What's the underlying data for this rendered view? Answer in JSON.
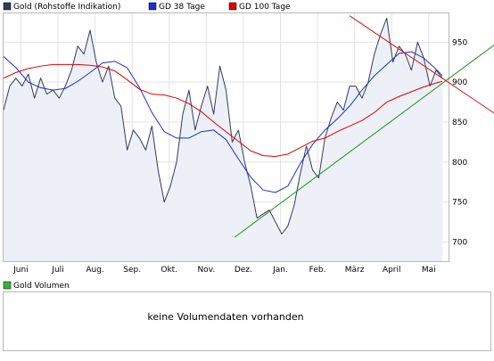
{
  "chart_data": [
    {
      "type": "line",
      "title": "",
      "legend": [
        {
          "name": "Gold (Rohstoffe Indikation)",
          "color": "#333a57"
        },
        {
          "name": "GD 38 Tage",
          "color": "#1c2fd0"
        },
        {
          "name": "GD 100 Tage",
          "color": "#e00000"
        }
      ],
      "legend_placement": "top-left",
      "x_ticks": [
        "Juni",
        "Juli",
        "Aug.",
        "Sep.",
        "Okt.",
        "Nov.",
        "Dez.",
        "Jan.",
        "Feb.",
        "März",
        "April",
        "Mai"
      ],
      "y_ticks": [
        700,
        750,
        800,
        850,
        900,
        950
      ],
      "y_axis_side": "right",
      "ylim": [
        676,
        986
      ],
      "grid": true,
      "series": [
        {
          "name": "Gold (Rohstoffe Indikation)",
          "color": "#333a57",
          "fill": "#eef0f8",
          "x": [
            0,
            5,
            10,
            15,
            20,
            25,
            30,
            35,
            40,
            45,
            50,
            55,
            60,
            65,
            70,
            75,
            80,
            85,
            90,
            95,
            100,
            105,
            110,
            115,
            120,
            125,
            130,
            135,
            140,
            145,
            150,
            155,
            160,
            165,
            170,
            175,
            180,
            185,
            190,
            195,
            200,
            205,
            210,
            215,
            220,
            225,
            230,
            235,
            240,
            245,
            250,
            255,
            260,
            265,
            270,
            275,
            280,
            285,
            290,
            295,
            300,
            305,
            310,
            315,
            320,
            325,
            330,
            335,
            340,
            345,
            350,
            355
          ],
          "y": [
            865,
            895,
            905,
            895,
            910,
            880,
            905,
            885,
            890,
            880,
            895,
            915,
            945,
            935,
            965,
            925,
            900,
            920,
            880,
            870,
            815,
            840,
            830,
            815,
            845,
            790,
            750,
            770,
            800,
            860,
            890,
            840,
            870,
            895,
            860,
            920,
            890,
            825,
            840,
            800,
            770,
            730,
            735,
            740,
            725,
            710,
            720,
            745,
            785,
            820,
            790,
            780,
            830,
            855,
            875,
            865,
            895,
            895,
            880,
            900,
            935,
            960,
            980,
            925,
            945,
            935,
            915,
            950,
            930,
            895,
            915,
            905
          ]
        },
        {
          "name": "GD 38 Tage",
          "color": "#1c2fd0",
          "x": [
            0,
            10,
            20,
            30,
            40,
            50,
            60,
            70,
            80,
            90,
            100,
            110,
            120,
            130,
            140,
            150,
            160,
            170,
            180,
            190,
            200,
            210,
            220,
            230,
            240,
            250,
            260,
            270,
            280,
            290,
            300,
            310,
            320,
            330,
            340,
            350,
            355
          ],
          "y": [
            932,
            918,
            900,
            893,
            890,
            892,
            901,
            912,
            924,
            926,
            918,
            893,
            862,
            838,
            830,
            830,
            838,
            840,
            828,
            804,
            781,
            765,
            762,
            770,
            798,
            822,
            840,
            854,
            870,
            890,
            908,
            922,
            936,
            938,
            930,
            916,
            908
          ]
        },
        {
          "name": "GD 100 Tage",
          "color": "#e00000",
          "x": [
            0,
            10,
            20,
            30,
            40,
            50,
            60,
            70,
            80,
            90,
            100,
            110,
            120,
            130,
            140,
            150,
            160,
            170,
            180,
            190,
            200,
            210,
            220,
            230,
            240,
            250,
            260,
            270,
            280,
            290,
            300,
            310,
            320,
            330,
            340,
            350,
            355
          ],
          "y": [
            905,
            912,
            917,
            920,
            922,
            922,
            922,
            921,
            919,
            914,
            903,
            891,
            885,
            884,
            880,
            873,
            863,
            850,
            838,
            826,
            814,
            808,
            807,
            810,
            818,
            826,
            830,
            838,
            845,
            852,
            862,
            875,
            882,
            888,
            894,
            899,
            901
          ]
        },
        {
          "name": "",
          "color": "#1f8f1f",
          "x": [
            187,
            400
          ],
          "y": [
            706,
            950
          ]
        },
        {
          "name": "",
          "color": "#e01010",
          "x": [
            280,
            400
          ],
          "y": [
            983,
            858
          ]
        }
      ]
    },
    {
      "type": "bar",
      "legend": [
        {
          "name": "Gold Volumen",
          "color": "#3cb03c"
        }
      ],
      "message": "keine Volumendaten vorhanden"
    }
  ]
}
